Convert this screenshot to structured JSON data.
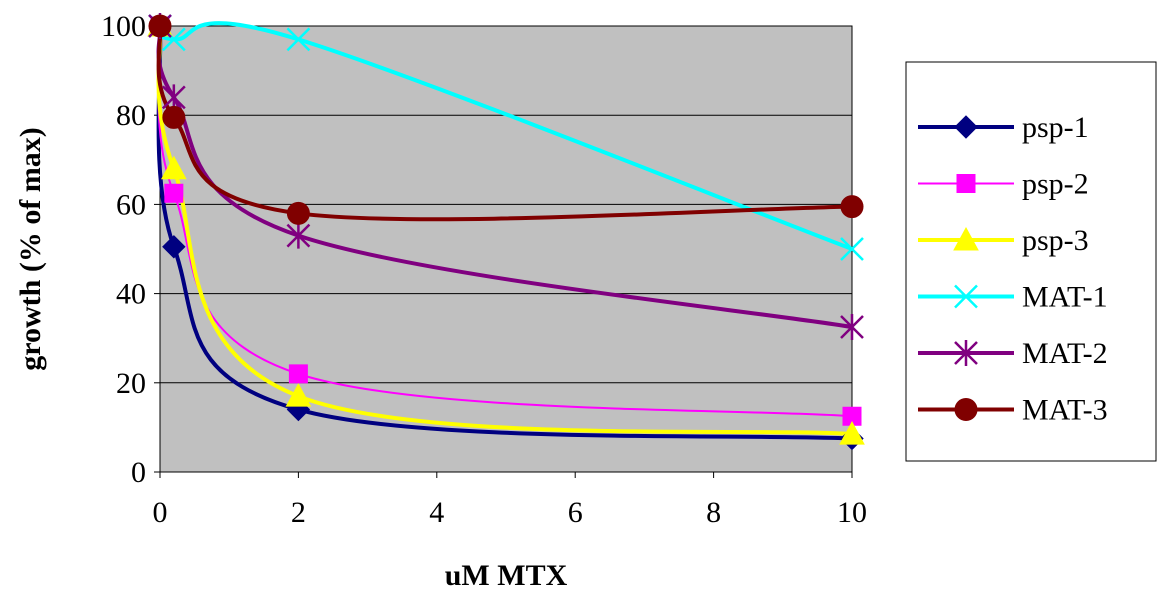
{
  "chart_data": {
    "type": "line",
    "title": "",
    "xlabel": "uM MTX",
    "ylabel": "growth (% of max)",
    "xlim": [
      0,
      10
    ],
    "ylim": [
      0,
      100
    ],
    "x_ticks": [
      0,
      2,
      4,
      6,
      8,
      10
    ],
    "y_ticks": [
      0,
      20,
      40,
      60,
      80,
      100
    ],
    "grid": "horizontal",
    "plot_background": "#c0c0c0",
    "legend_position": "right",
    "x": [
      0,
      0.2,
      2,
      10
    ],
    "series": [
      {
        "name": "psp-1",
        "values": [
          100,
          50.5,
          14,
          7.5
        ],
        "color": "#000080",
        "marker": "diamond"
      },
      {
        "name": "psp-2",
        "values": [
          100,
          62.5,
          22,
          12.5
        ],
        "color": "#ff00ff",
        "marker": "square"
      },
      {
        "name": "psp-3",
        "values": [
          100,
          68,
          17,
          8.5
        ],
        "color": "#ffff00",
        "marker": "triangle"
      },
      {
        "name": "MAT-1",
        "values": [
          100,
          97,
          97,
          50
        ],
        "color": "#00ffff",
        "marker": "x"
      },
      {
        "name": "MAT-2",
        "values": [
          100,
          84,
          53,
          32.5
        ],
        "color": "#800080",
        "marker": "star"
      },
      {
        "name": "MAT-3",
        "values": [
          100,
          79.5,
          58,
          59.5
        ],
        "color": "#800000",
        "marker": "circle"
      }
    ]
  }
}
